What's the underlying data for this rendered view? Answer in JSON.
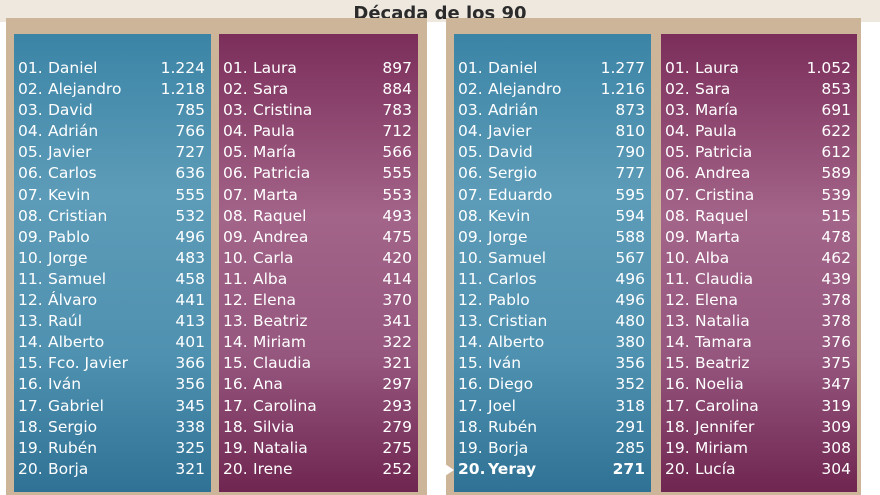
{
  "title": "Década de los 90",
  "columns": [
    {
      "theme": "blue",
      "rows": [
        {
          "num": "01.",
          "name": "Daniel",
          "value": "1.224"
        },
        {
          "num": "02.",
          "name": "Alejandro",
          "value": "1.218"
        },
        {
          "num": "03.",
          "name": "David",
          "value": "785"
        },
        {
          "num": "04.",
          "name": "Adrián",
          "value": "766"
        },
        {
          "num": "05.",
          "name": "Javier",
          "value": "727"
        },
        {
          "num": "06.",
          "name": "Carlos",
          "value": "636"
        },
        {
          "num": "07.",
          "name": "Kevin",
          "value": "555"
        },
        {
          "num": "08.",
          "name": "Cristian",
          "value": "532"
        },
        {
          "num": "09.",
          "name": "Pablo",
          "value": "496"
        },
        {
          "num": "10.",
          "name": "Jorge",
          "value": "483"
        },
        {
          "num": "11.",
          "name": "Samuel",
          "value": "458"
        },
        {
          "num": "12.",
          "name": "Álvaro",
          "value": "441"
        },
        {
          "num": "13.",
          "name": "Raúl",
          "value": "413"
        },
        {
          "num": "14.",
          "name": "Alberto",
          "value": "401"
        },
        {
          "num": "15.",
          "name": "Fco. Javier",
          "value": "366"
        },
        {
          "num": "16.",
          "name": "Iván",
          "value": "356"
        },
        {
          "num": "17.",
          "name": "Gabriel",
          "value": "345"
        },
        {
          "num": "18.",
          "name": "Sergio",
          "value": "338"
        },
        {
          "num": "19.",
          "name": "Rubén",
          "value": "325"
        },
        {
          "num": "20.",
          "name": "Borja",
          "value": "321"
        }
      ]
    },
    {
      "theme": "pink",
      "rows": [
        {
          "num": "01.",
          "name": "Laura",
          "value": "897"
        },
        {
          "num": "02.",
          "name": "Sara",
          "value": "884"
        },
        {
          "num": "03.",
          "name": "Cristina",
          "value": "783"
        },
        {
          "num": "04.",
          "name": "Paula",
          "value": "712"
        },
        {
          "num": "05.",
          "name": "María",
          "value": "566"
        },
        {
          "num": "06.",
          "name": "Patricia",
          "value": "555"
        },
        {
          "num": "07.",
          "name": "Marta",
          "value": "553"
        },
        {
          "num": "08.",
          "name": "Raquel",
          "value": "493"
        },
        {
          "num": "09.",
          "name": "Andrea",
          "value": "475"
        },
        {
          "num": "10.",
          "name": "Carla",
          "value": "420"
        },
        {
          "num": "11.",
          "name": "Alba",
          "value": "414"
        },
        {
          "num": "12.",
          "name": "Elena",
          "value": "370"
        },
        {
          "num": "13.",
          "name": "Beatriz",
          "value": "341"
        },
        {
          "num": "14.",
          "name": "Miriam",
          "value": "322"
        },
        {
          "num": "15.",
          "name": "Claudia",
          "value": "321"
        },
        {
          "num": "16.",
          "name": "Ana",
          "value": "297"
        },
        {
          "num": "17.",
          "name": "Carolina",
          "value": "293"
        },
        {
          "num": "18.",
          "name": "Silvia",
          "value": "279"
        },
        {
          "num": "19.",
          "name": "Natalia",
          "value": "275"
        },
        {
          "num": "20.",
          "name": "Irene",
          "value": "252"
        }
      ]
    },
    {
      "theme": "blue",
      "rows": [
        {
          "num": "01.",
          "name": "Daniel",
          "value": "1.277"
        },
        {
          "num": "02.",
          "name": "Alejandro",
          "value": "1.216"
        },
        {
          "num": "03.",
          "name": "Adrián",
          "value": "873"
        },
        {
          "num": "04.",
          "name": "Javier",
          "value": "810"
        },
        {
          "num": "05.",
          "name": "David",
          "value": "790"
        },
        {
          "num": "06.",
          "name": "Sergio",
          "value": "777"
        },
        {
          "num": "07.",
          "name": "Eduardo",
          "value": "595"
        },
        {
          "num": "08.",
          "name": "Kevin",
          "value": "594"
        },
        {
          "num": "09.",
          "name": "Jorge",
          "value": "588"
        },
        {
          "num": "10.",
          "name": "Samuel",
          "value": "567"
        },
        {
          "num": "11.",
          "name": "Carlos",
          "value": "496"
        },
        {
          "num": "12.",
          "name": "Pablo",
          "value": "496"
        },
        {
          "num": "13.",
          "name": "Cristian",
          "value": "480"
        },
        {
          "num": "14.",
          "name": "Alberto",
          "value": "380"
        },
        {
          "num": "15.",
          "name": "Iván",
          "value": "356"
        },
        {
          "num": "16.",
          "name": "Diego",
          "value": "352"
        },
        {
          "num": "17.",
          "name": "Joel",
          "value": "318"
        },
        {
          "num": "18.",
          "name": "Rubén",
          "value": "291"
        },
        {
          "num": "19.",
          "name": "Borja",
          "value": "285"
        },
        {
          "num": "20.",
          "name": "Yeray",
          "value": "271",
          "highlight": true
        }
      ]
    },
    {
      "theme": "pink",
      "rows": [
        {
          "num": "01.",
          "name": "Laura",
          "value": "1.052"
        },
        {
          "num": "02.",
          "name": "Sara",
          "value": "853"
        },
        {
          "num": "03.",
          "name": "María",
          "value": "691"
        },
        {
          "num": "04.",
          "name": "Paula",
          "value": "622"
        },
        {
          "num": "05.",
          "name": "Patricia",
          "value": "612"
        },
        {
          "num": "06.",
          "name": "Andrea",
          "value": "589"
        },
        {
          "num": "07.",
          "name": "Cristina",
          "value": "539"
        },
        {
          "num": "08.",
          "name": "Raquel",
          "value": "515"
        },
        {
          "num": "09.",
          "name": "Marta",
          "value": "478"
        },
        {
          "num": "10.",
          "name": "Alba",
          "value": "462"
        },
        {
          "num": "11.",
          "name": "Claudia",
          "value": "439"
        },
        {
          "num": "12.",
          "name": "Elena",
          "value": "378"
        },
        {
          "num": "13.",
          "name": "Natalia",
          "value": "378"
        },
        {
          "num": "14.",
          "name": "Tamara",
          "value": "376"
        },
        {
          "num": "15.",
          "name": "Beatriz",
          "value": "375"
        },
        {
          "num": "16.",
          "name": "Noelia",
          "value": "347"
        },
        {
          "num": "17.",
          "name": "Carolina",
          "value": "319"
        },
        {
          "num": "18.",
          "name": "Jennifer",
          "value": "309"
        },
        {
          "num": "19.",
          "name": "Miriam",
          "value": "308"
        },
        {
          "num": "20.",
          "name": "Lucía",
          "value": "304"
        }
      ]
    }
  ]
}
